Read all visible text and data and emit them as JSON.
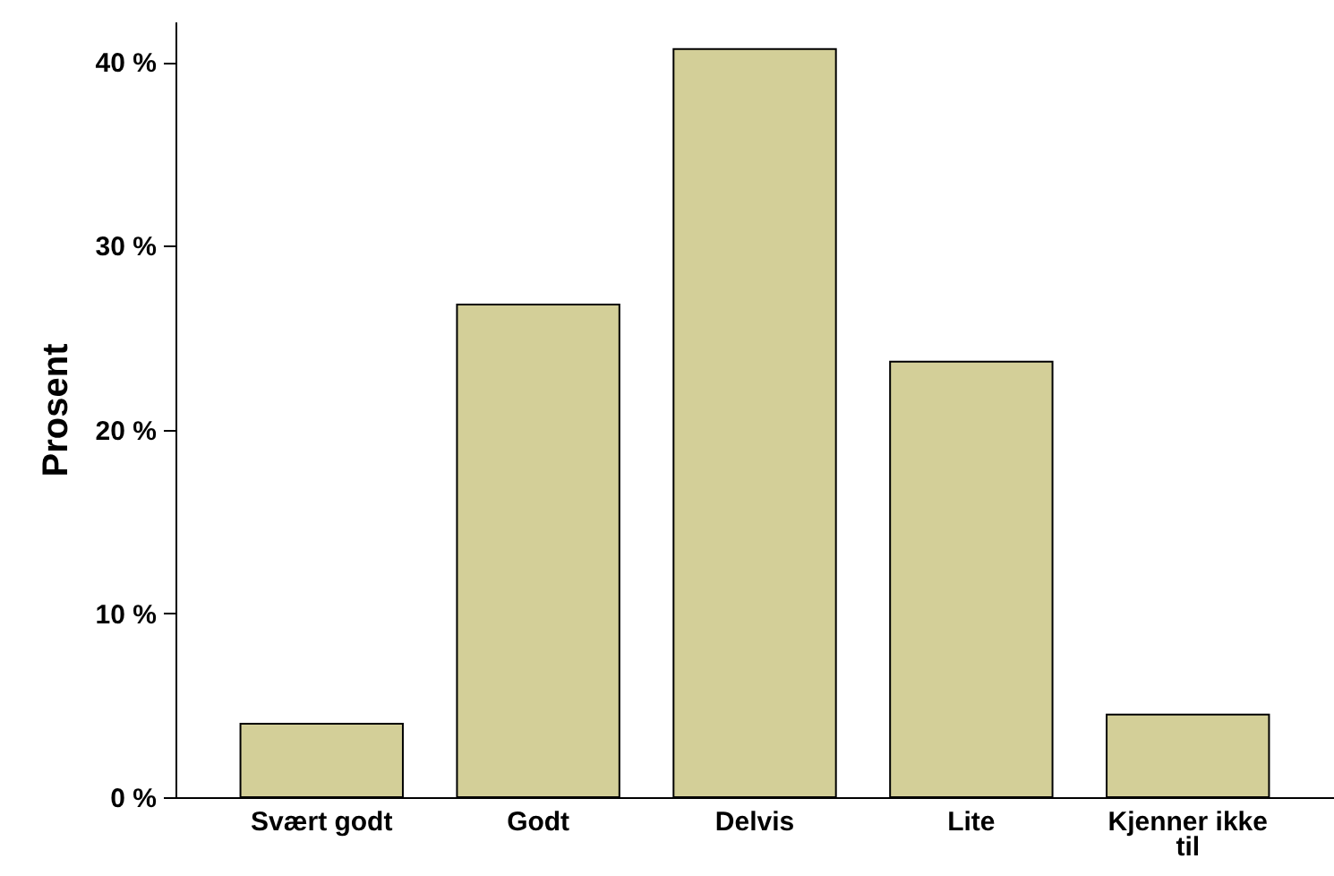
{
  "chart_data": {
    "type": "bar",
    "ylabel": "Prosent",
    "categories": [
      "Svært godt",
      "Godt",
      "Delvis",
      "Lite",
      "Kjenner ikke til"
    ],
    "values": [
      4.0,
      26.8,
      40.7,
      23.7,
      4.5
    ],
    "color": "#d3cf98",
    "ylim": [
      0,
      42.2
    ],
    "yticks": [
      {
        "value": 0,
        "label": "0 %"
      },
      {
        "value": 10,
        "label": "10 %"
      },
      {
        "value": 20,
        "label": "20 %"
      },
      {
        "value": 30,
        "label": "30 %"
      },
      {
        "value": 40,
        "label": "40 %"
      }
    ],
    "grid": false
  }
}
